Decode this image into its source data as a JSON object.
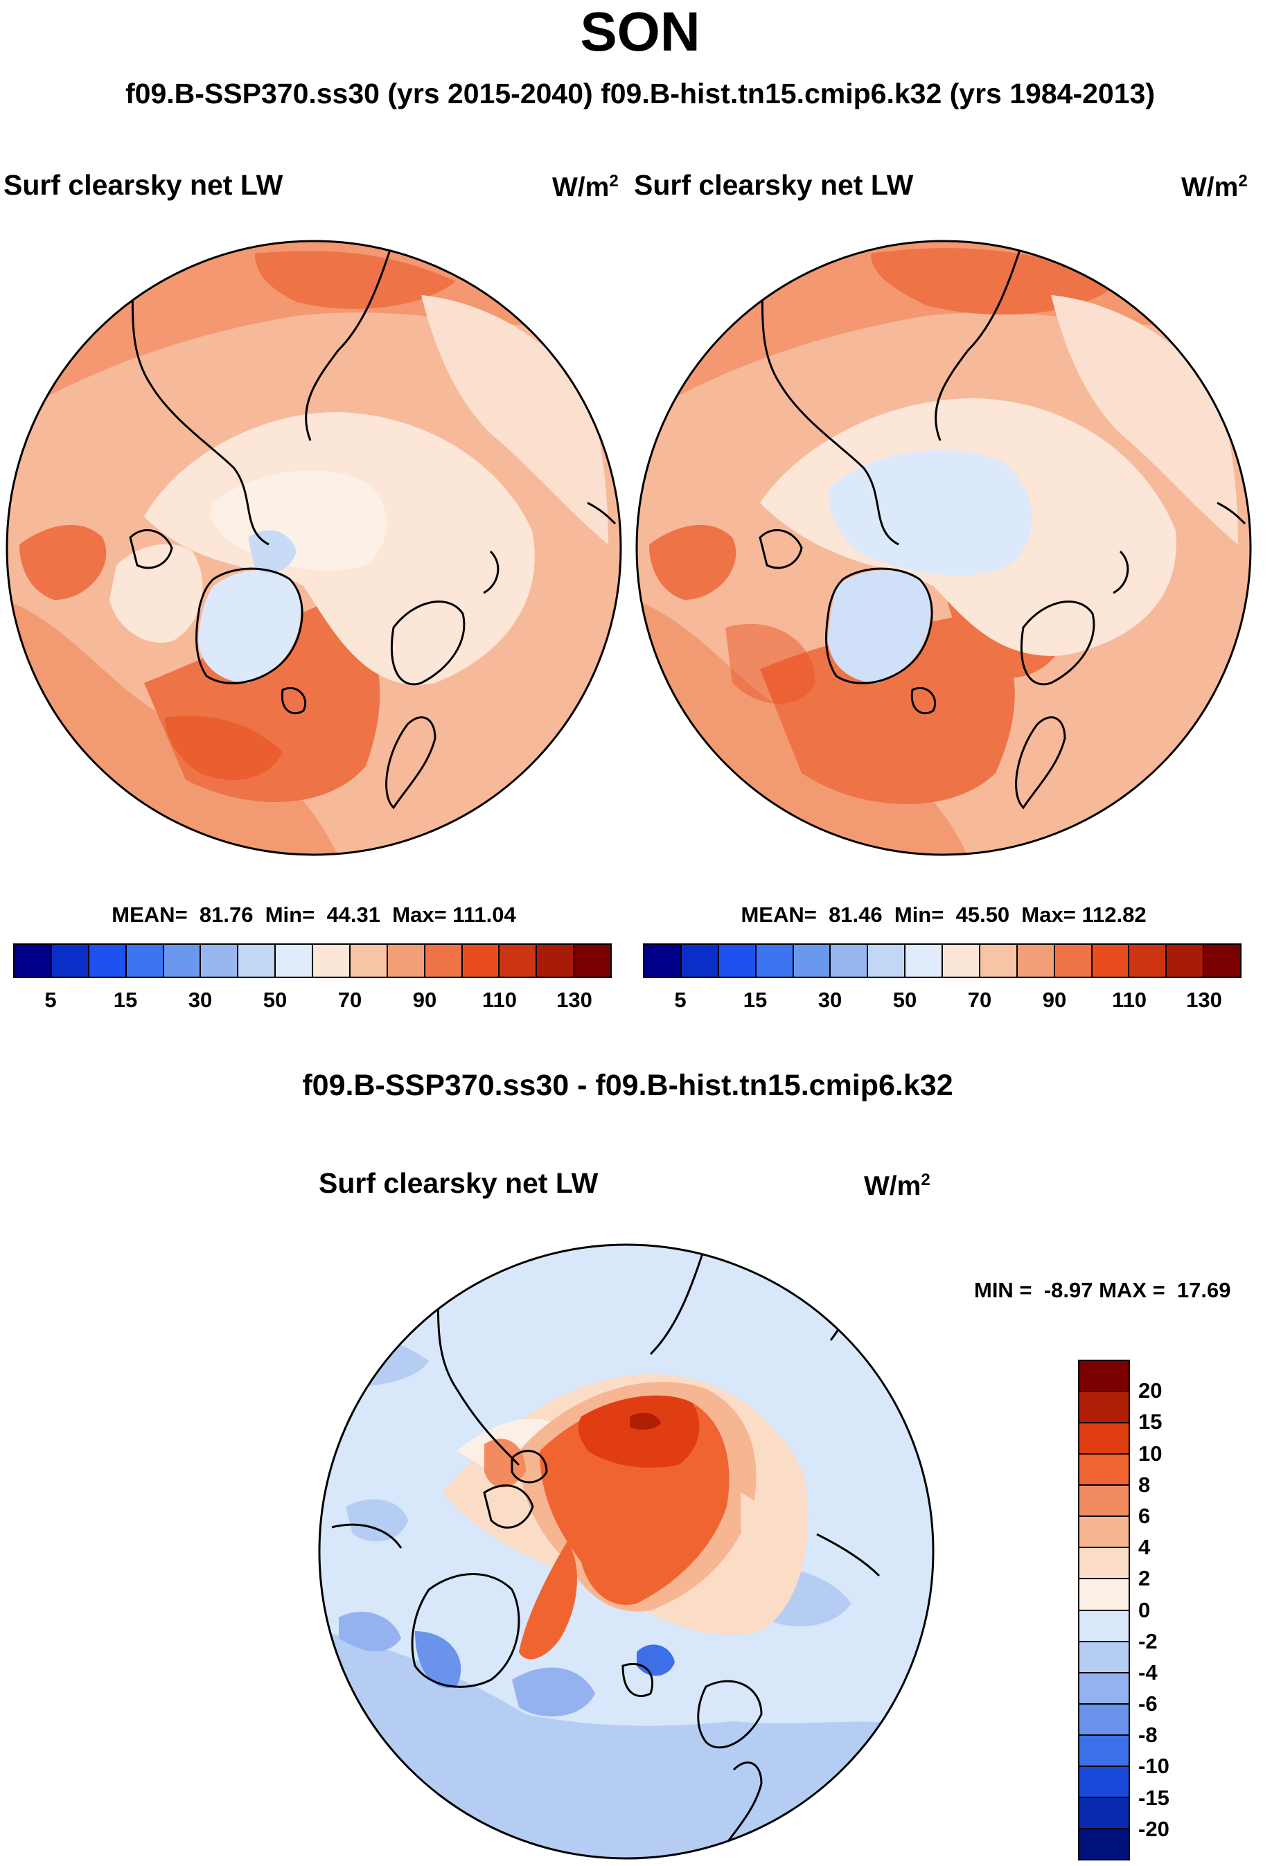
{
  "figure": {
    "season": "SON",
    "subtitle": "f09.B-SSP370.ss30 (yrs 2015-2040)  f09.B-hist.tn15.cmip6.k32 (yrs 1984-2013)",
    "diff_title": "f09.B-SSP370.ss30 - f09.B-hist.tn15.cmip6.k32"
  },
  "panels": [
    {
      "variable": "Surf clearsky net LW",
      "units_base": "W/m",
      "units_exp": "2",
      "mean_label": "MEAN=",
      "mean": "81.76",
      "min_label": "Min=",
      "min": "44.31",
      "max_label": "Max=",
      "max": "111.04"
    },
    {
      "variable": "Surf clearsky net LW",
      "units_base": "W/m",
      "units_exp": "2",
      "mean_label": "MEAN=",
      "mean": "81.46",
      "min_label": "Min=",
      "min": "45.50",
      "max_label": "Max=",
      "max": "112.82"
    }
  ],
  "diff_panel": {
    "variable": "Surf clearsky net LW",
    "units_base": "W/m",
    "units_exp": "2",
    "min_label": "MIN =",
    "min": "-8.97",
    "max_label": "MAX =",
    "max": "17.69"
  },
  "chart_data": [
    {
      "type": "heatmap",
      "title": "Surf clearsky net LW",
      "units": "W/m2",
      "projection": "north polar stereographic",
      "stats": {
        "mean": 81.76,
        "min": 44.31,
        "max": 111.04
      },
      "colorbar_levels": [
        5,
        10,
        15,
        20,
        30,
        40,
        50,
        60,
        70,
        80,
        90,
        100,
        110,
        120,
        130
      ],
      "colorbar_tick_labels": [
        "5",
        "15",
        "30",
        "50",
        "70",
        "90",
        "110",
        "130"
      ],
      "colorbar_colors": [
        "#00008b",
        "#0a2ec8",
        "#1e52f0",
        "#3d74f2",
        "#6a98ee",
        "#98b6ef",
        "#c2d6f5",
        "#e0ecfb",
        "#fbe6d8",
        "#f8c4a6",
        "#f29e77",
        "#ee7347",
        "#e94d1e",
        "#cc3413",
        "#a71b08",
        "#7a0000"
      ]
    },
    {
      "type": "heatmap",
      "title": "Surf clearsky net LW",
      "units": "W/m2",
      "projection": "north polar stereographic",
      "stats": {
        "mean": 81.46,
        "min": 45.5,
        "max": 112.82
      },
      "colorbar_levels": [
        5,
        10,
        15,
        20,
        30,
        40,
        50,
        60,
        70,
        80,
        90,
        100,
        110,
        120,
        130
      ],
      "colorbar_tick_labels": [
        "5",
        "15",
        "30",
        "50",
        "70",
        "90",
        "110",
        "130"
      ],
      "colorbar_colors": [
        "#00008b",
        "#0a2ec8",
        "#1e52f0",
        "#3d74f2",
        "#6a98ee",
        "#98b6ef",
        "#c2d6f5",
        "#e0ecfb",
        "#fbe6d8",
        "#f8c4a6",
        "#f29e77",
        "#ee7347",
        "#e94d1e",
        "#cc3413",
        "#a71b08",
        "#7a0000"
      ]
    },
    {
      "type": "heatmap",
      "title": "f09.B-SSP370.ss30 - f09.B-hist.tn15.cmip6.k32",
      "units": "W/m2",
      "projection": "north polar stereographic",
      "stats": {
        "min": -8.97,
        "max": 17.69
      },
      "colorbar_levels": [
        -20,
        -15,
        -10,
        -8,
        -6,
        -4,
        -2,
        0,
        2,
        4,
        6,
        8,
        10,
        15,
        20
      ],
      "colorbar_tick_labels": [
        "20",
        "15",
        "10",
        "8",
        "6",
        "4",
        "2",
        "0",
        "-2",
        "-4",
        "-6",
        "-8",
        "-10",
        "-15",
        "-20"
      ],
      "colorbar_colors": [
        "#7a0000",
        "#b01f05",
        "#e03d12",
        "#f06432",
        "#f28b5f",
        "#f6b692",
        "#fbdcc7",
        "#fcefe6",
        "#d8e7f9",
        "#b6cdf3",
        "#93b2ef",
        "#6a94ec",
        "#3d6fe8",
        "#1a48d8",
        "#0a2ab0",
        "#00107a"
      ]
    }
  ]
}
